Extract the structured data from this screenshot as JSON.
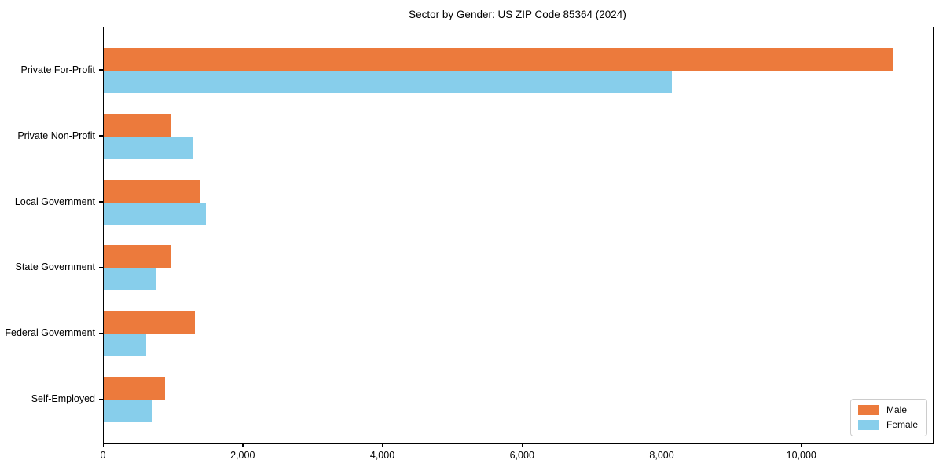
{
  "title": "Sector by Gender: US ZIP Code 85364 (2024)",
  "chart_data": {
    "type": "bar",
    "orientation": "horizontal",
    "title": "Sector by Gender: US ZIP Code 85364 (2024)",
    "categories": [
      "Private For-Profit",
      "Private Non-Profit",
      "Local Government",
      "State Government",
      "Federal Government",
      "Self-Employed"
    ],
    "series": [
      {
        "name": "Male",
        "color": "#EC7A3C",
        "values": [
          11300,
          960,
          1380,
          960,
          1310,
          880
        ]
      },
      {
        "name": "Female",
        "color": "#87CEEB",
        "values": [
          8130,
          1280,
          1460,
          750,
          610,
          690
        ]
      }
    ],
    "xlabel": "",
    "ylabel": "",
    "xlim": [
      0,
      11870
    ],
    "xticks": [
      0,
      2000,
      4000,
      6000,
      8000,
      10000
    ],
    "xtick_labels": [
      "0",
      "2,000",
      "4,000",
      "6,000",
      "8,000",
      "10,000"
    ],
    "grid": false,
    "legend_position": "lower right"
  },
  "legend": {
    "male_label": "Male",
    "female_label": "Female"
  }
}
